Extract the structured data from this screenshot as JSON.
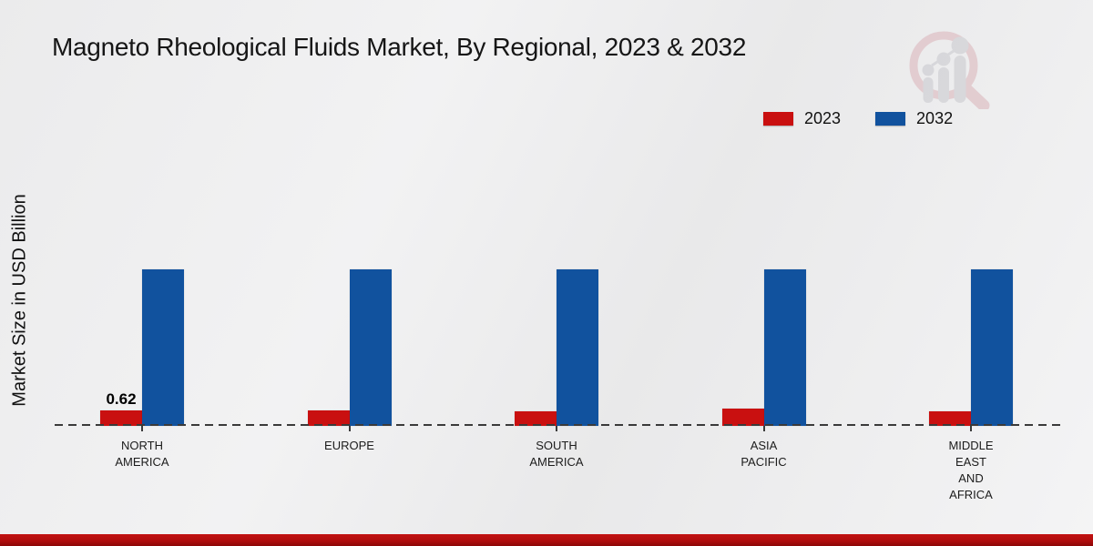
{
  "title": "Magneto Rheological Fluids Market, By Regional, 2023 & 2032",
  "y_axis_label": "Market Size in USD Billion",
  "legend": {
    "position": "top-right",
    "items": [
      {
        "label": "2023",
        "color": "#c91010"
      },
      {
        "label": "2032",
        "color": "#11529e"
      }
    ]
  },
  "chart_data": {
    "type": "bar",
    "title": "Magneto Rheological Fluids Market, By Regional, 2023 & 2032",
    "xlabel": "",
    "ylabel": "Market Size in USD Billion",
    "categories": [
      "NORTH AMERICA",
      "EUROPE",
      "SOUTH AMERICA",
      "ASIA PACIFIC",
      "MIDDLE EAST AND AFRICA"
    ],
    "category_label_lines": [
      [
        "NORTH",
        "AMERICA"
      ],
      [
        "EUROPE"
      ],
      [
        "SOUTH",
        "AMERICA"
      ],
      [
        "ASIA",
        "PACIFIC"
      ],
      [
        "MIDDLE",
        "EAST",
        "AND",
        "AFRICA"
      ]
    ],
    "series": [
      {
        "name": "2023",
        "color": "#c91010",
        "values": [
          0.62,
          0.62,
          0.57,
          0.68,
          0.58
        ]
      },
      {
        "name": "2032",
        "color": "#11529e",
        "values": [
          6.3,
          6.3,
          6.3,
          6.3,
          6.3
        ]
      }
    ],
    "data_labels": [
      {
        "series_index": 0,
        "category_index": 0,
        "text": "0.62"
      }
    ],
    "ylim": [
      0,
      6.6
    ],
    "grid": false,
    "axis_style": "dashed-baseline",
    "legend_position": "top-right"
  },
  "colors": {
    "series_2023": "#c91010",
    "series_2032": "#11529e",
    "baseline": "#3a3a3a",
    "footer_band": "#b00d0d",
    "background": "#ededee",
    "title_text": "#161616"
  }
}
